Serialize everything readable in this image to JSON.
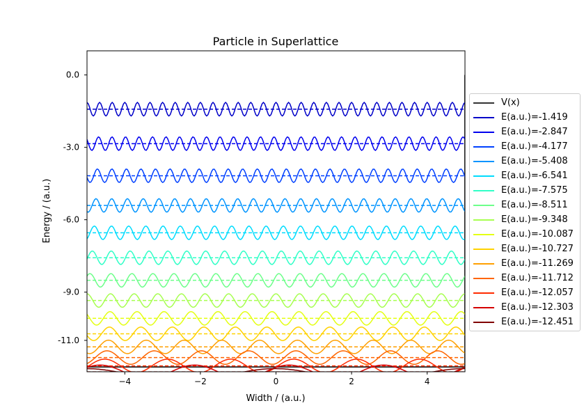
{
  "chart_data": {
    "type": "line",
    "title": "Particle in Superlattice",
    "xlabel": "Width / (a.u.)",
    "ylabel": "Energy / (a.u.)",
    "xlim": [
      -5,
      5
    ],
    "ylim": [
      -12.3,
      1.0
    ],
    "xticks": [
      -4,
      -2,
      0,
      2,
      4
    ],
    "xtick_labels": [
      "−4",
      "−2",
      "0",
      "2",
      "4"
    ],
    "yticks": [
      0.0,
      -3.0,
      -6.0,
      -9.0,
      -11.0
    ],
    "ytick_labels": [
      "0.0",
      "-3.0",
      "-6.0",
      "-9.0",
      "-11.0"
    ],
    "grid": false,
    "legend_position": "outside-right",
    "potential": {
      "name": "V(x)",
      "color": "#333333",
      "min": -12.1,
      "max": 0.0
    },
    "series": [
      {
        "name": "E(a.u.)=-1.419",
        "energy": -1.419,
        "color": "#0000c8"
      },
      {
        "name": "E(a.u.)=-2.847",
        "energy": -2.847,
        "color": "#0000ee"
      },
      {
        "name": "E(a.u.)=-4.177",
        "energy": -4.177,
        "color": "#0040ff"
      },
      {
        "name": "E(a.u.)=-5.408",
        "energy": -5.408,
        "color": "#0094ff"
      },
      {
        "name": "E(a.u.)=-6.541",
        "energy": -6.541,
        "color": "#00dcfe"
      },
      {
        "name": "E(a.u.)=-7.575",
        "energy": -7.575,
        "color": "#30ffc7"
      },
      {
        "name": "E(a.u.)=-8.511",
        "energy": -8.511,
        "color": "#6dff8a"
      },
      {
        "name": "E(a.u.)=-9.348",
        "energy": -9.348,
        "color": "#a7ff50"
      },
      {
        "name": "E(a.u.)=-10.087",
        "energy": -10.087,
        "color": "#e4ff13"
      },
      {
        "name": "E(a.u.)=-10.727",
        "energy": -10.727,
        "color": "#ffd200"
      },
      {
        "name": "E(a.u.)=-11.269",
        "energy": -11.269,
        "color": "#ff9f00"
      },
      {
        "name": "E(a.u.)=-11.712",
        "energy": -11.712,
        "color": "#ff6500"
      },
      {
        "name": "E(a.u.)=-12.057",
        "energy": -12.057,
        "color": "#ff2a00"
      },
      {
        "name": "E(a.u.)=-12.303",
        "energy": -12.303,
        "color": "#d40000"
      },
      {
        "name": "E(a.u.)=-12.451",
        "energy": -12.451,
        "color": "#800000"
      }
    ]
  }
}
